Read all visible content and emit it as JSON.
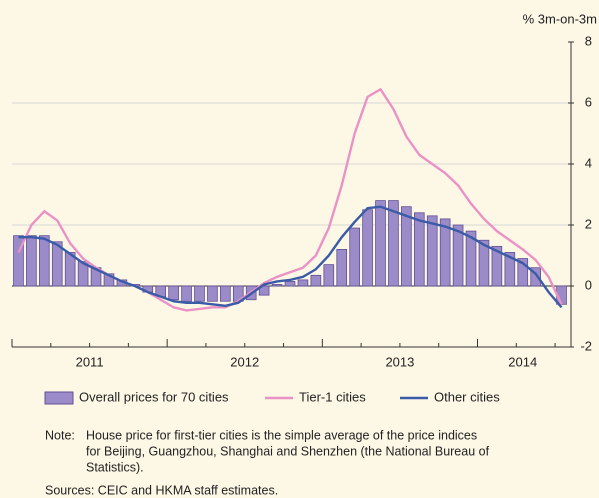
{
  "chart_data": {
    "type": "bar_line",
    "y_axis_label": "% 3m-on-3m",
    "categories": [
      null,
      null,
      null,
      null,
      null,
      null,
      null,
      null,
      null,
      null,
      null,
      null,
      null,
      null,
      null,
      null,
      null,
      null,
      null,
      null,
      null,
      null,
      null,
      null,
      null,
      null,
      null,
      null,
      null,
      null,
      null,
      null,
      null,
      null,
      null,
      null,
      null,
      null,
      null,
      null,
      null,
      null,
      null
    ],
    "year_labels": [
      "2011",
      "2012",
      "2013",
      "2014"
    ],
    "series": [
      {
        "name": "Overall prices for 70 cities",
        "kind": "bar",
        "color": "#9c8bc9",
        "values": [
          1.65,
          1.65,
          1.65,
          1.45,
          1.1,
          0.8,
          0.6,
          0.4,
          0.2,
          0.05,
          -0.2,
          -0.35,
          -0.45,
          -0.5,
          -0.5,
          -0.5,
          -0.5,
          -0.5,
          -0.45,
          -0.3,
          0.05,
          0.15,
          0.2,
          0.35,
          0.7,
          1.2,
          1.9,
          2.5,
          2.8,
          2.8,
          2.6,
          2.4,
          2.3,
          2.2,
          2.0,
          1.8,
          1.5,
          1.3,
          1.1,
          0.9,
          0.6,
          0.0,
          -0.6
        ]
      },
      {
        "name": "Tier-1 cities",
        "kind": "line",
        "color": "#ea92c6",
        "values": [
          1.1,
          2.0,
          2.45,
          2.15,
          1.4,
          0.9,
          0.6,
          0.35,
          0.15,
          0.0,
          -0.2,
          -0.45,
          -0.7,
          -0.8,
          -0.75,
          -0.7,
          -0.7,
          -0.5,
          -0.2,
          0.1,
          0.3,
          0.45,
          0.6,
          1.0,
          1.9,
          3.3,
          5.0,
          6.2,
          6.45,
          5.8,
          4.9,
          4.3,
          4.0,
          3.7,
          3.3,
          2.7,
          2.2,
          1.8,
          1.5,
          1.2,
          0.85,
          0.3,
          -0.6
        ]
      },
      {
        "name": "Other cities",
        "kind": "line",
        "color": "#3a5ca8",
        "values": [
          1.6,
          1.6,
          1.55,
          1.35,
          1.05,
          0.75,
          0.55,
          0.35,
          0.15,
          0.0,
          -0.2,
          -0.35,
          -0.5,
          -0.55,
          -0.55,
          -0.6,
          -0.65,
          -0.55,
          -0.25,
          0.05,
          0.15,
          0.2,
          0.3,
          0.55,
          1.0,
          1.6,
          2.1,
          2.55,
          2.6,
          2.45,
          2.3,
          2.15,
          2.05,
          1.95,
          1.8,
          1.6,
          1.35,
          1.15,
          0.95,
          0.75,
          0.4,
          -0.2,
          -0.7
        ]
      }
    ],
    "ylim": [
      -2,
      8
    ],
    "yticks": [
      -2,
      0,
      2,
      4,
      6,
      8
    ],
    "grid": true,
    "note_label": "Note:",
    "note_lines": [
      "House price for first-tier cities is the simple average of the price indices",
      "for Beijing, Guangzhou, Shanghai and Shenzhen (the National Bureau of",
      "Statistics)."
    ],
    "sources": "Sources: CEIC and HKMA staff estimates."
  }
}
